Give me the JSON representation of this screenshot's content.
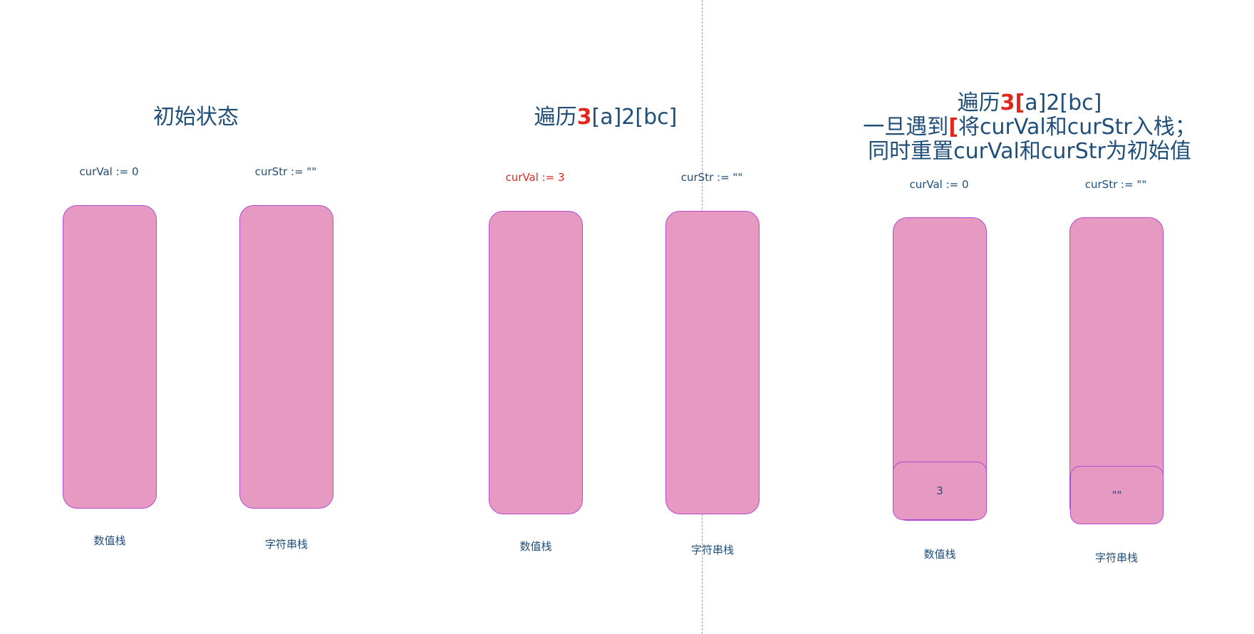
{
  "panel1": {
    "title": "初始状态",
    "val_label": "curVal := 0",
    "str_label": "curStr := \"\"",
    "val_stack_name": "数值栈",
    "str_stack_name": "字符串栈"
  },
  "panel2": {
    "title_prefix": "遍历",
    "title_hl": "3",
    "title_rest": "[a]2[bc]",
    "val_label": "curVal := 3",
    "str_label": "curStr := \"\"",
    "val_stack_name": "数值栈",
    "str_stack_name": "字符串栈"
  },
  "panel3": {
    "line1_prefix": "遍历",
    "line1_hl": "3[",
    "line1_rest": "a]2[bc]",
    "line2_prefix": "一旦遇到",
    "line2_hl": "[",
    "line2_rest": "将curVal和curStr入栈；",
    "line3": "同时重置curVal和curStr为初始值",
    "val_label": "curVal := 0",
    "str_label": "curStr := \"\"",
    "val_item": "3",
    "str_item": "\"\"",
    "val_stack_name": "数值栈",
    "str_stack_name": "字符串栈"
  },
  "colors": {
    "stack_fill": "#e699c1",
    "stack_border": "#b14bd6",
    "text": "#1f4e79",
    "highlight": "#e0271d"
  }
}
